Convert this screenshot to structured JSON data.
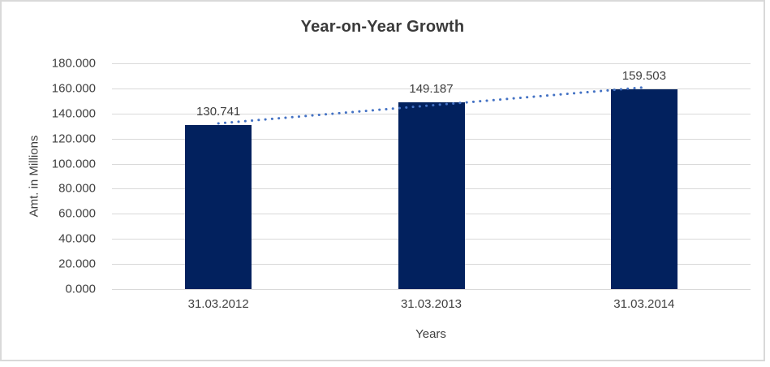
{
  "chart_data": {
    "type": "bar",
    "title": "Year-on-Year Growth",
    "xlabel": "Years",
    "ylabel": "Amt. in Millions",
    "categories": [
      "31.03.2012",
      "31.03.2013",
      "31.03.2014"
    ],
    "values": [
      130.741,
      149.187,
      159.503
    ],
    "data_labels": [
      "130.741",
      "149.187",
      "159.503"
    ],
    "y_ticks": [
      "180.000",
      "160.000",
      "140.000",
      "120.000",
      "100.000",
      "80.000",
      "60.000",
      "40.000",
      "20.000",
      "0.000"
    ],
    "ylim": [
      0,
      180
    ],
    "y_tick_step": 20,
    "grid": true,
    "legend": "none",
    "trendline": {
      "type": "linear",
      "style": "dotted",
      "color": "#4472C4"
    },
    "colors": {
      "bar": "#02215E",
      "gridline": "#D9D9D9",
      "frame_border": "#D9D9D9",
      "background": "#FFFFFF",
      "title_text": "#3A3A3A",
      "axis_text": "#404040"
    }
  }
}
